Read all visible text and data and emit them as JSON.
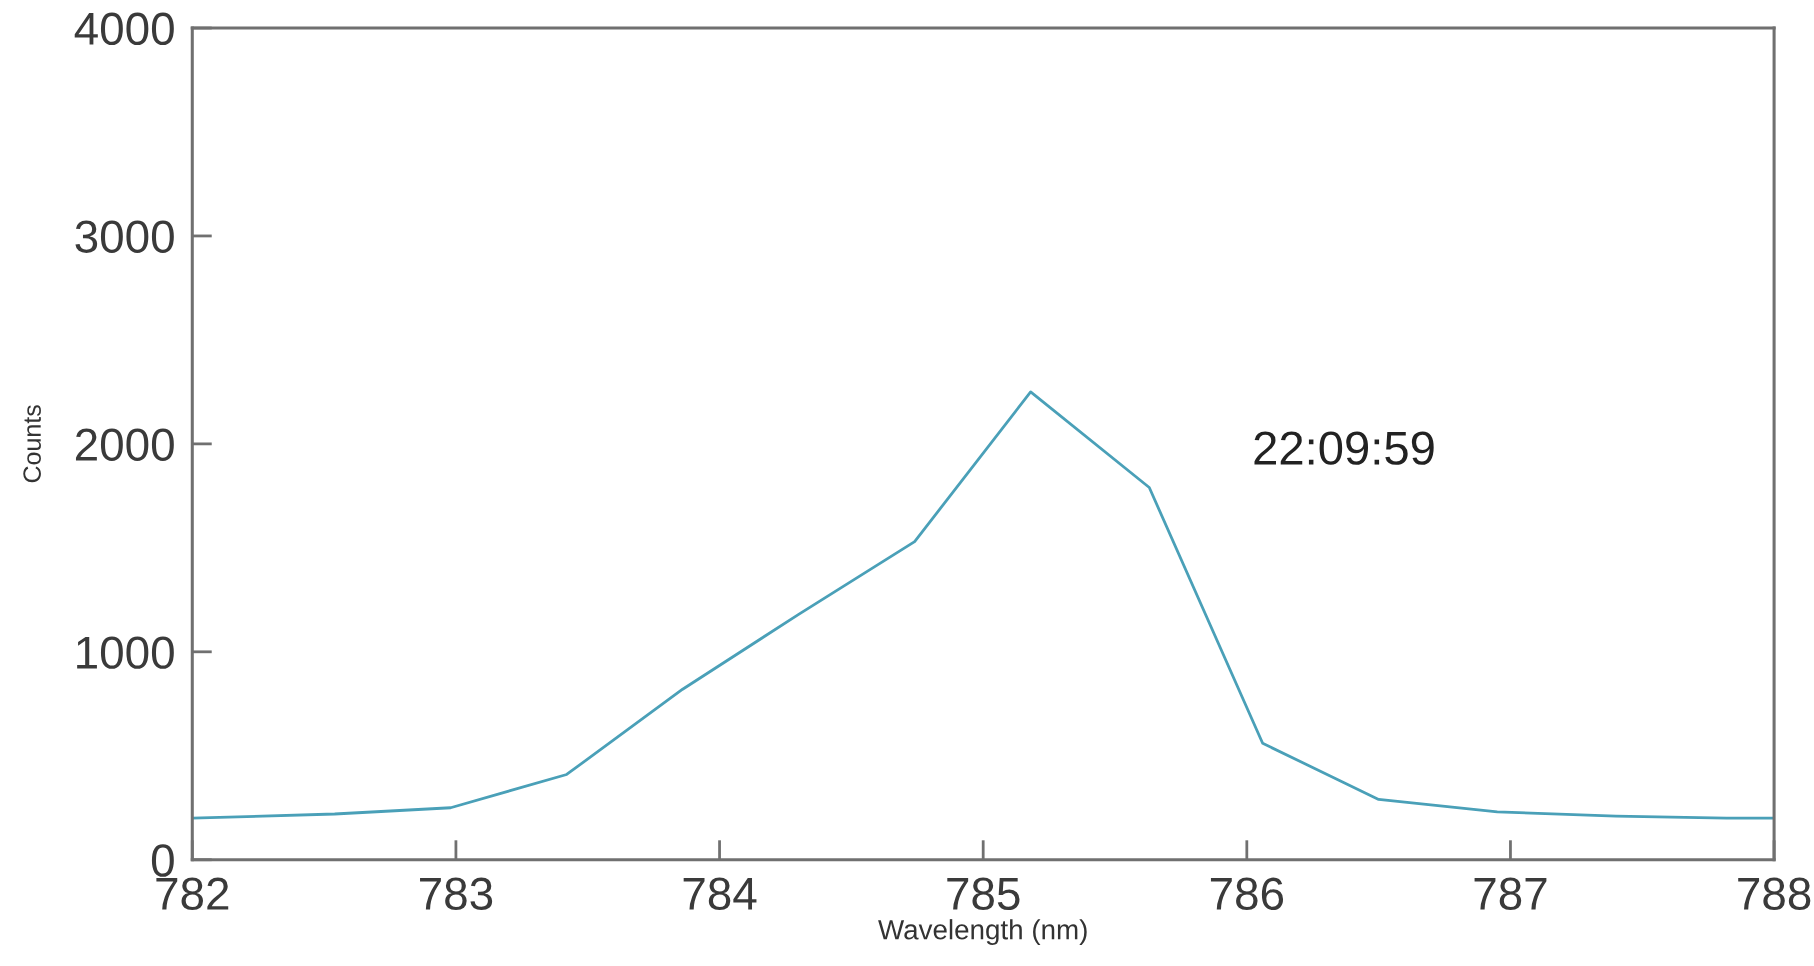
{
  "chart_data": {
    "type": "line",
    "xlabel": "Wavelength (nm)",
    "ylabel": "Counts",
    "annotations": [
      "22:09:59"
    ],
    "series": [
      {
        "color": "#4aa0b8",
        "x": [
          782.0,
          782.54,
          782.98,
          783.42,
          783.86,
          784.3,
          784.74,
          785.18,
          785.63,
          786.06,
          786.5,
          786.95,
          787.4,
          787.82,
          788.0
        ],
        "values": [
          200,
          220,
          250,
          410,
          820,
          1180,
          1530,
          2250,
          1790,
          560,
          290,
          230,
          210,
          200,
          200
        ]
      }
    ],
    "xlim": [
      782,
      788
    ],
    "xticks": [
      782,
      783,
      784,
      785,
      786,
      787,
      788
    ],
    "ylim": [
      0,
      4000
    ],
    "yticks": [
      0,
      1000,
      2000,
      3000,
      4000
    ],
    "grid": false,
    "marker": "none",
    "line_style": "solid"
  }
}
